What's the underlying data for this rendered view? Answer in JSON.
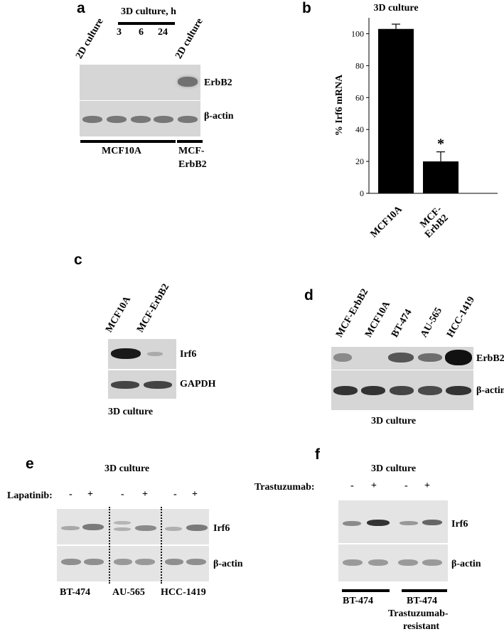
{
  "panels": {
    "a": {
      "letter": "a",
      "col_2d_left": "2D culture",
      "col_3d_header": "3D culture, h",
      "timepoints": [
        "3",
        "6",
        "24"
      ],
      "col_2d_right": "2D culture",
      "blot_labels": [
        "ErbB2",
        "β-actin"
      ],
      "group_left": "MCF10A",
      "group_right_line1": "MCF-",
      "group_right_line2": "ErbB2"
    },
    "b": {
      "letter": "b",
      "significance": "*"
    },
    "c": {
      "letter": "c",
      "lanes": [
        "MCF10A",
        "MCF-ErbB2"
      ],
      "blot_labels": [
        "Irf6",
        "GAPDH"
      ],
      "footer": "3D culture"
    },
    "d": {
      "letter": "d",
      "lanes": [
        "MCF-ErbB2",
        "MCF10A",
        "BT-474",
        "AU-565",
        "HCC-1419"
      ],
      "blot_labels": [
        "ErbB2",
        "β-actin"
      ],
      "footer": "3D culture"
    },
    "e": {
      "letter": "e",
      "title": "3D culture",
      "treatment_label": "Lapatinib:",
      "signs": [
        "-",
        "+",
        "-",
        "+",
        "-",
        "+"
      ],
      "blot_labels": [
        "Irf6",
        "β-actin"
      ],
      "cell_lines": [
        "BT-474",
        "AU-565",
        "HCC-1419"
      ]
    },
    "f": {
      "letter": "f",
      "title": "3D culture",
      "treatment_label": "Trastuzumab:",
      "signs": [
        "-",
        "+",
        "-",
        "+"
      ],
      "blot_labels": [
        "Irf6",
        "β-actin"
      ],
      "group_left": "BT-474",
      "group_right_line1": "BT-474",
      "group_right_line2": "Trastuzumab-",
      "group_right_line3": "resistant"
    }
  },
  "chart_data": {
    "type": "bar",
    "title": "3D culture",
    "ylabel": "% Irf6 mRNA",
    "xlabel": "",
    "categories": [
      "MCF10A",
      "MCF-ErbB2"
    ],
    "category_labels": [
      [
        "MCF10A"
      ],
      [
        "MCF-",
        "ErbB2"
      ]
    ],
    "values": [
      103,
      20
    ],
    "errors": [
      3,
      6
    ],
    "ylim": [
      0,
      100
    ],
    "yticks": [
      0,
      20,
      40,
      60,
      80,
      100
    ],
    "bar_color": "#000000",
    "grid": false,
    "annotations": [
      {
        "category": "MCF-ErbB2",
        "text": "*"
      }
    ]
  }
}
